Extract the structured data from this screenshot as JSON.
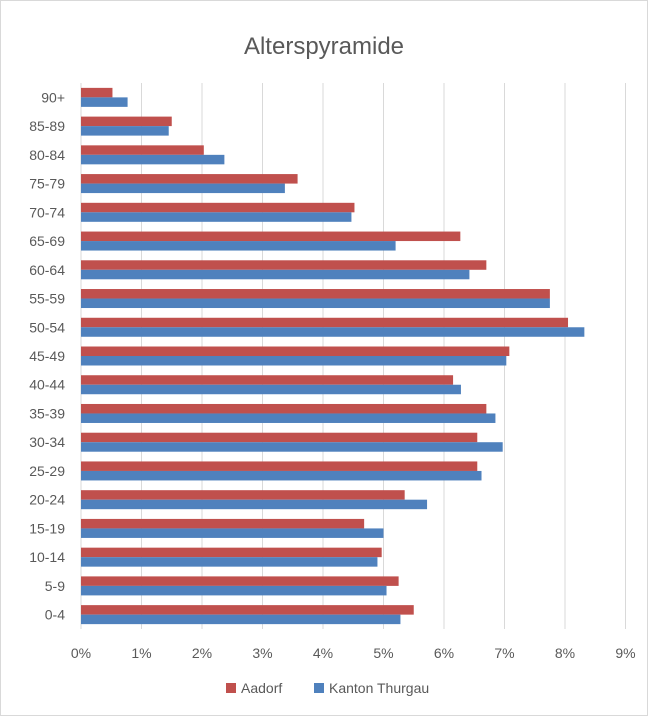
{
  "chart_data": {
    "type": "bar",
    "orientation": "horizontal",
    "title": "Alterspyramide",
    "categories": [
      "0-4",
      "5-9",
      "10-14",
      "15-19",
      "20-24",
      "25-29",
      "30-34",
      "35-39",
      "40-44",
      "45-49",
      "50-54",
      "55-59",
      "60-64",
      "65-69",
      "70-74",
      "75-79",
      "80-84",
      "85-89",
      "90+"
    ],
    "series": [
      {
        "name": "Aadorf",
        "color": "#c0504d",
        "values": [
          5.5,
          5.25,
          4.97,
          4.68,
          5.35,
          6.55,
          6.55,
          6.7,
          6.15,
          7.08,
          8.05,
          7.75,
          6.7,
          6.27,
          4.52,
          3.58,
          2.03,
          1.5,
          0.52
        ]
      },
      {
        "name": "Kanton Thurgau",
        "color": "#4f81bd",
        "values": [
          5.28,
          5.05,
          4.9,
          5.0,
          5.72,
          6.62,
          6.97,
          6.85,
          6.28,
          7.03,
          8.32,
          7.75,
          6.42,
          5.2,
          4.47,
          3.37,
          2.37,
          1.45,
          0.77
        ]
      }
    ],
    "xlim": [
      0,
      9
    ],
    "x_ticks": [
      "0%",
      "1%",
      "2%",
      "3%",
      "4%",
      "5%",
      "6%",
      "7%",
      "8%",
      "9%"
    ],
    "grid": true,
    "legend": "bottom"
  }
}
